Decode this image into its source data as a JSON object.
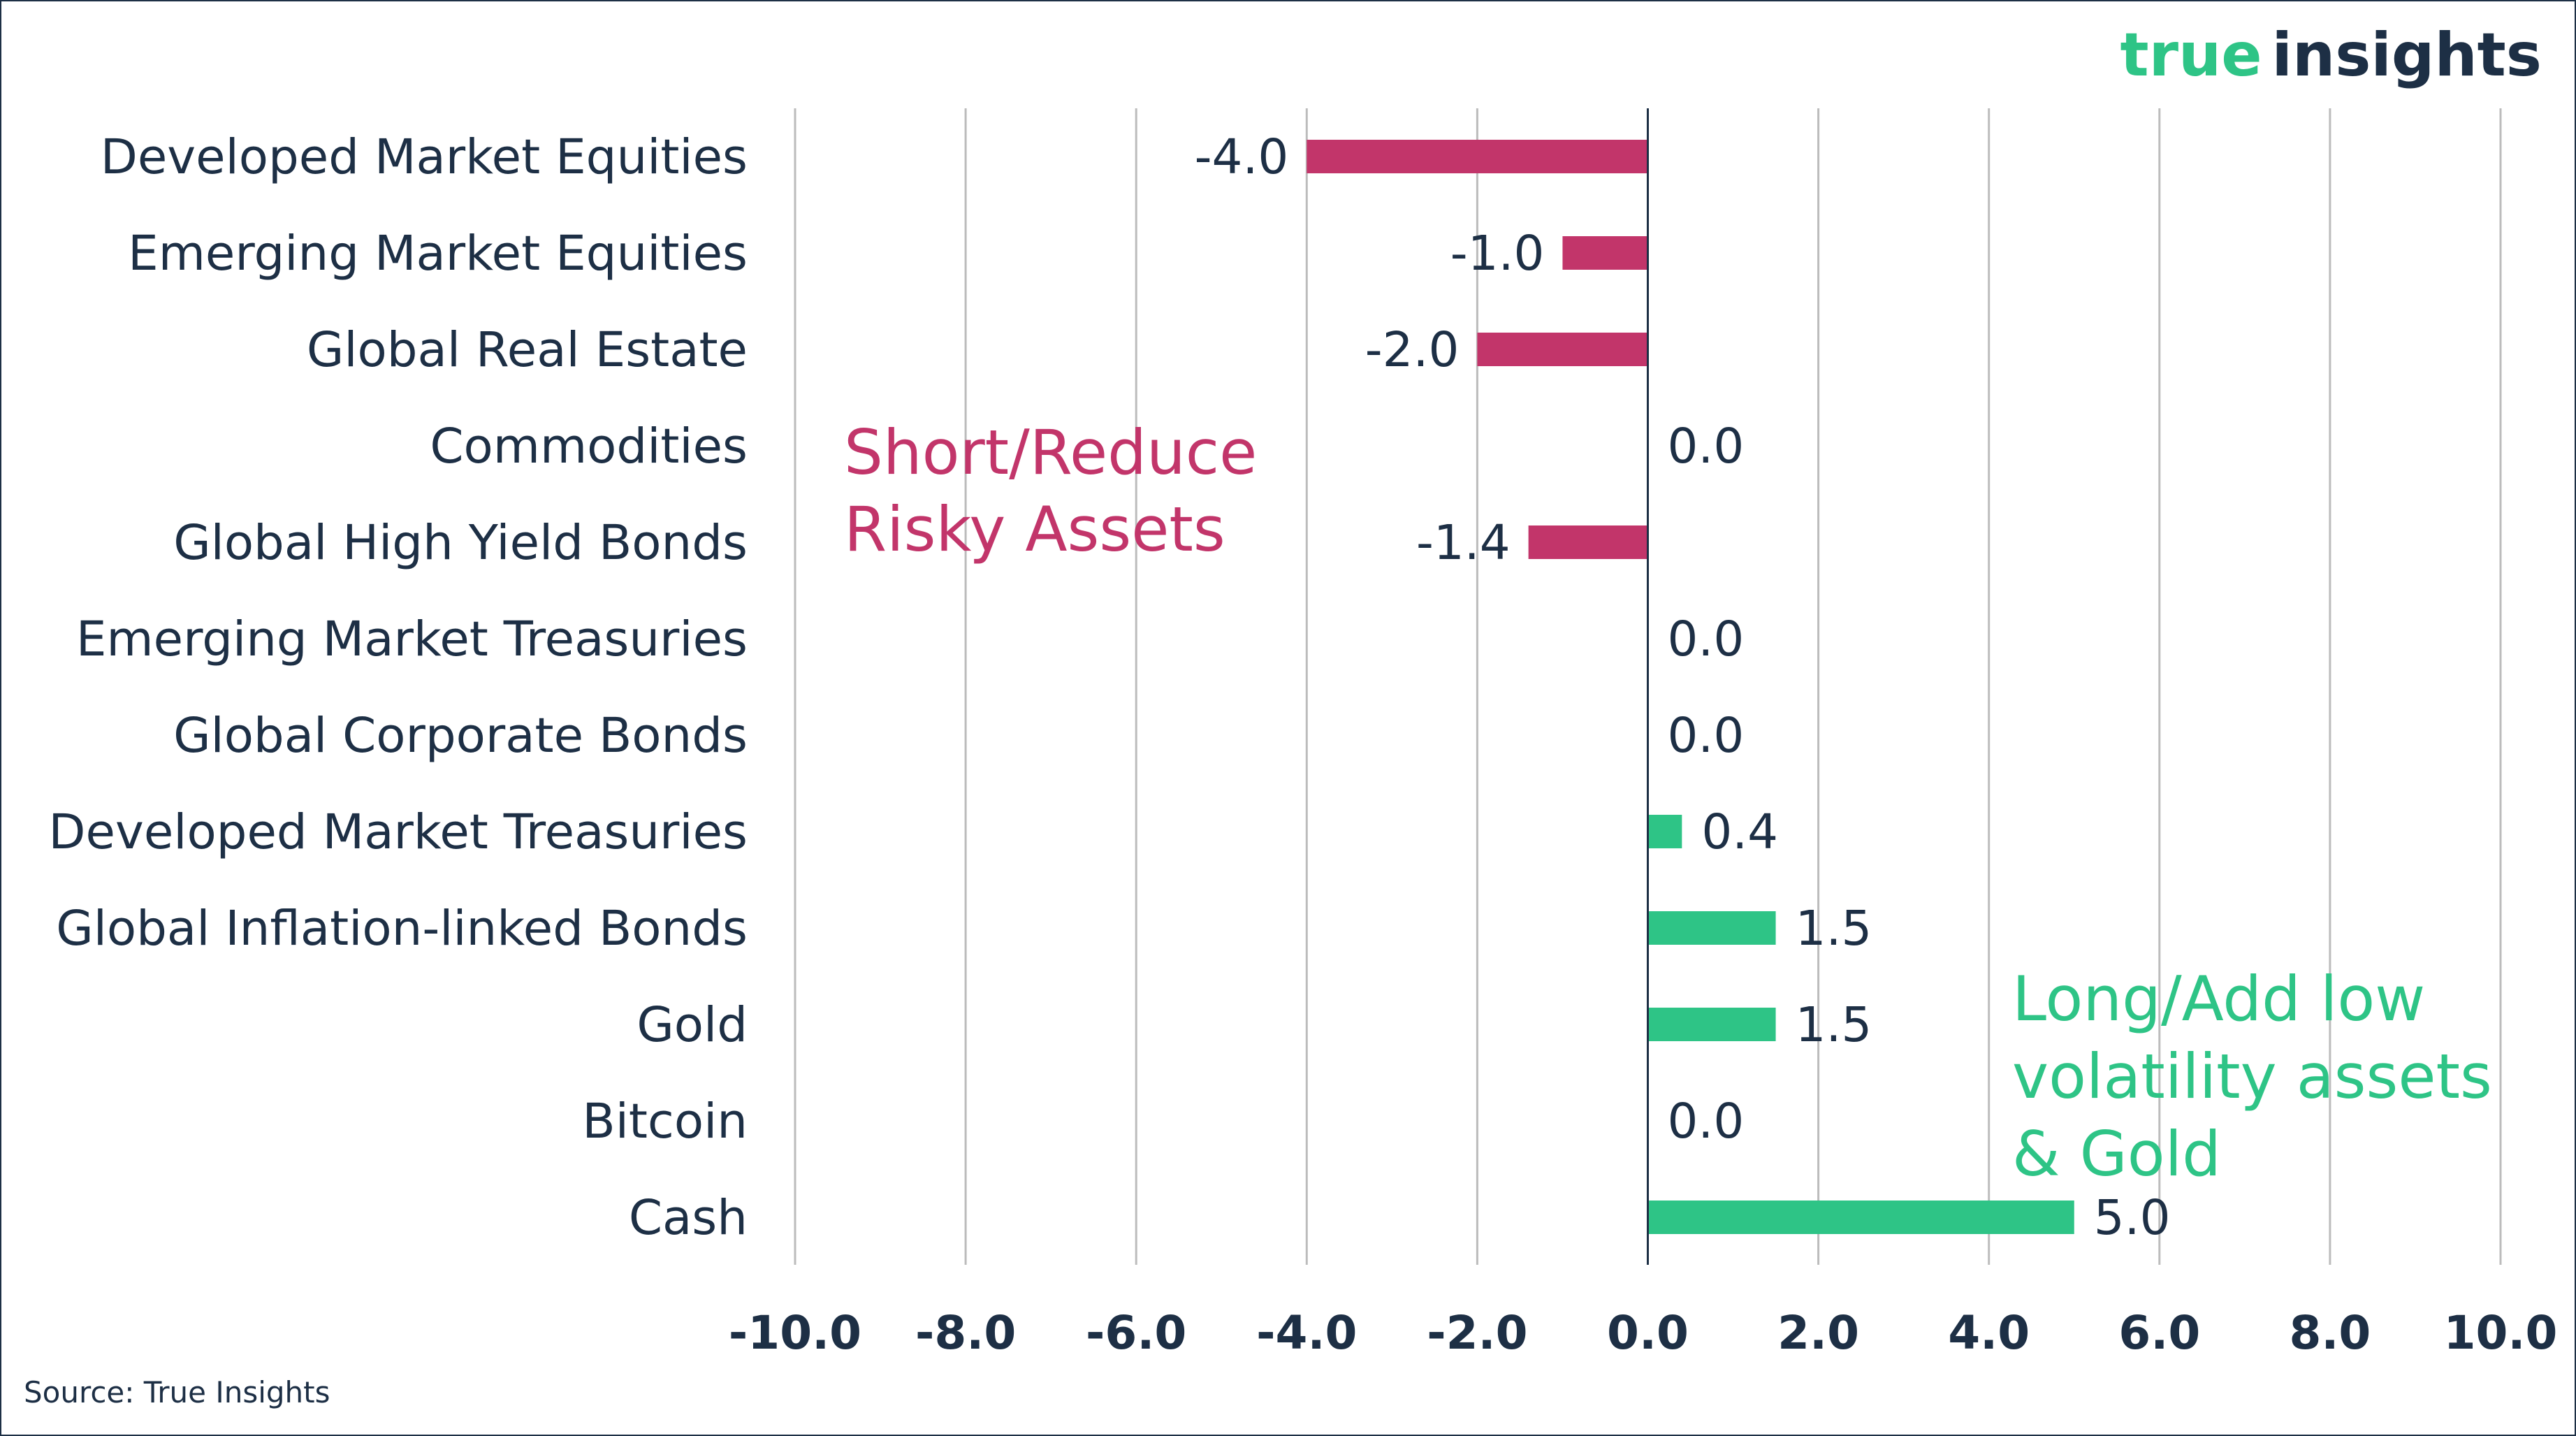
{
  "brand": {
    "logo_part1": "true",
    "logo_part2": "insights",
    "logo_color1": "#2ec486",
    "logo_color2": "#1d2f45"
  },
  "source": "Source: True Insights",
  "annotations": {
    "negative_line1": "Short/Reduce",
    "negative_line2": "Risky Assets",
    "positive_line1": "Long/Add low",
    "positive_line2": "volatility assets",
    "positive_line3": "& Gold"
  },
  "colors": {
    "negative": "#c2356a",
    "positive": "#2ec486",
    "text": "#1d2f45",
    "grid": "#bcbcbc",
    "zero_line": "#1d2f45"
  },
  "chart_data": {
    "type": "bar",
    "orientation": "horizontal",
    "categories": [
      "Developed Market Equities",
      "Emerging Market Equities",
      "Global Real Estate",
      "Commodities",
      "Global High Yield Bonds",
      "Emerging Market Treasuries",
      "Global Corporate Bonds",
      "Developed Market Treasuries",
      "Global Inflation-linked Bonds",
      "Gold",
      "Bitcoin",
      "Cash"
    ],
    "values": [
      -4.0,
      -1.0,
      -2.0,
      0.0,
      -1.4,
      0.0,
      0.0,
      0.4,
      1.5,
      1.5,
      0.0,
      5.0
    ],
    "value_labels": [
      "-4.0",
      "-1.0",
      "-2.0",
      "0.0",
      "-1.4",
      "0.0",
      "0.0",
      "0.4",
      "1.5",
      "1.5",
      "0.0",
      "5.0"
    ],
    "xlim": [
      -10,
      10
    ],
    "xticks": [
      -10,
      -8,
      -6,
      -4,
      -2,
      0,
      2,
      4,
      6,
      8,
      10
    ],
    "xtick_labels": [
      "-10.0",
      "-8.0",
      "-6.0",
      "-4.0",
      "-2.0",
      "0.0",
      "2.0",
      "4.0",
      "6.0",
      "8.0",
      "10.0"
    ],
    "grid": "vertical",
    "legend": "none"
  }
}
